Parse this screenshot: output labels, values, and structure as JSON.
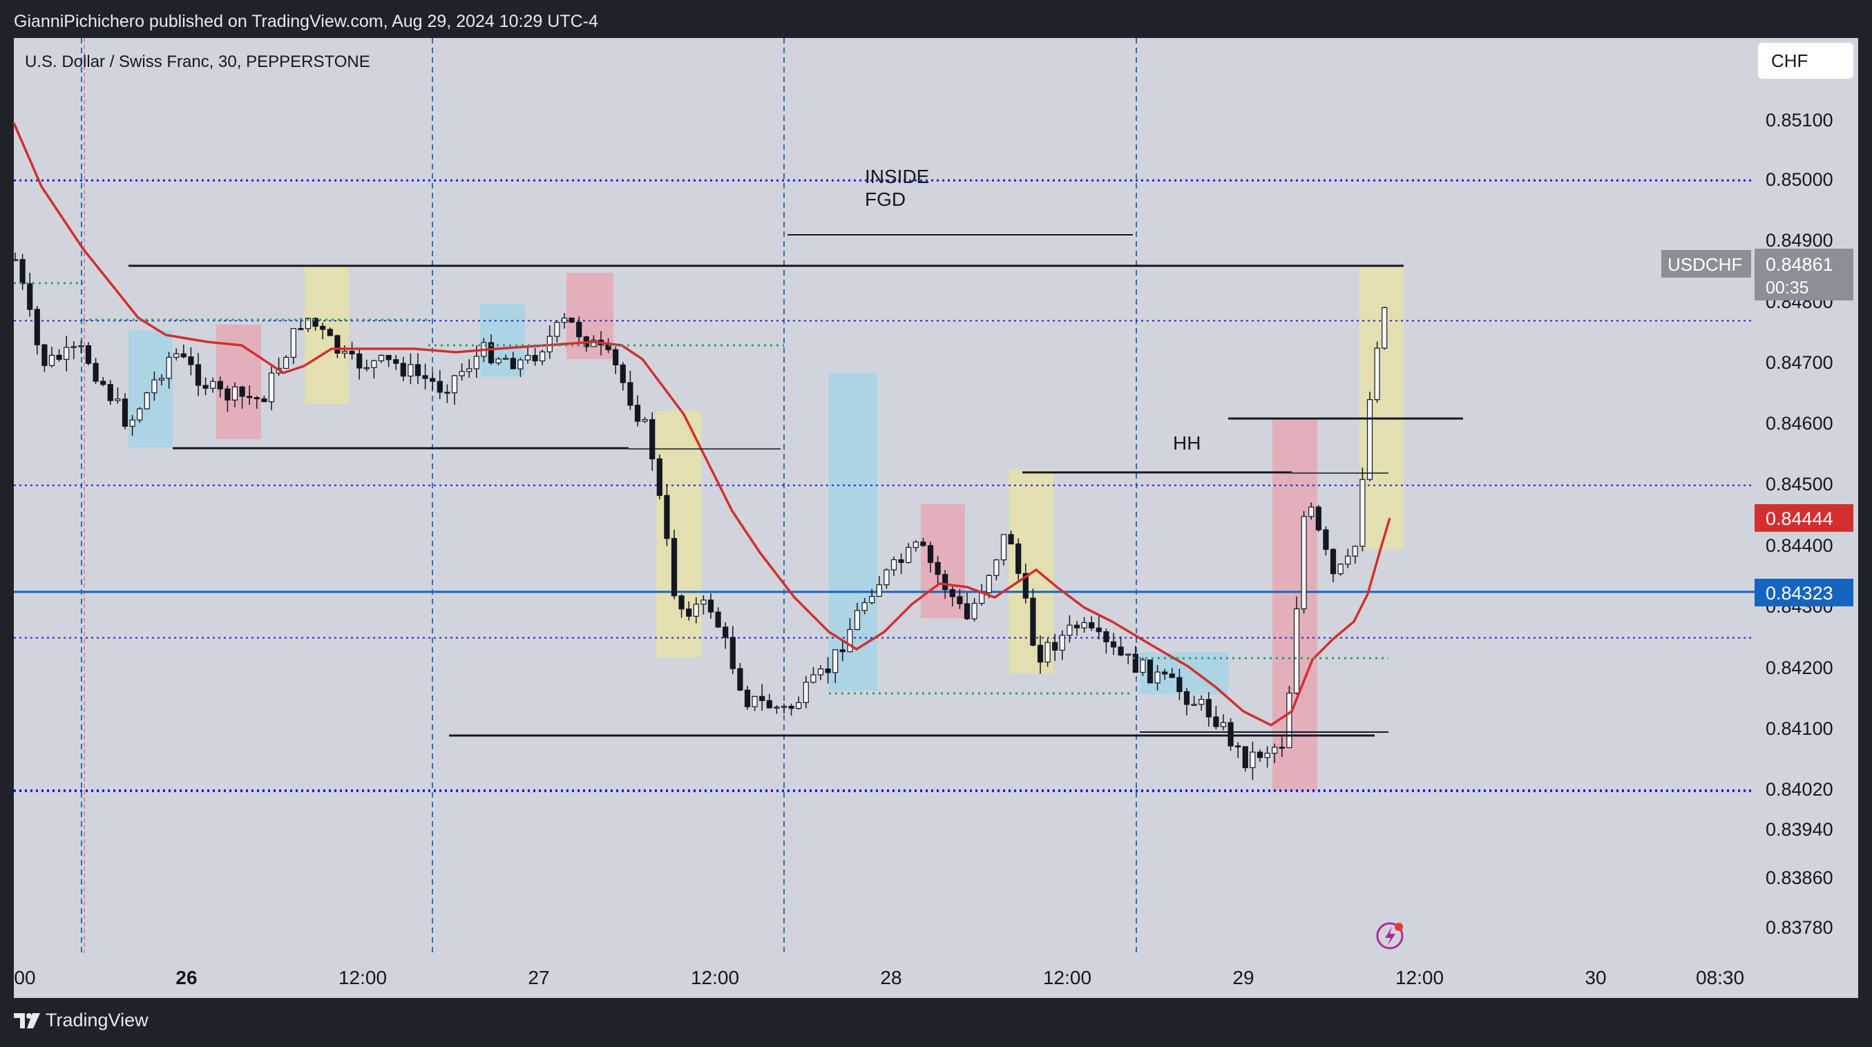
{
  "header": {
    "publisher_line": "GianniPichichero published on TradingView.com, Aug 29, 2024 10:29 UTC-4"
  },
  "footer": {
    "brand": "TradingView",
    "brand_icon": "tradingview-logo-icon"
  },
  "chart_data": {
    "type": "candlestick",
    "symbol_title": "U.S. Dollar / Swiss Franc, 30, PEPPERSTONE",
    "currency_button": "CHF",
    "ticker": "USDCHF",
    "last_price": "0.84861",
    "countdown": "00:35",
    "ma_price": "0.84444",
    "hline_price": "0.84323",
    "y_ticks": [
      "0.85100",
      "0.85000",
      "0.84900",
      "0.84800",
      "0.84700",
      "0.84600",
      "0.84500",
      "0.84400",
      "0.84300",
      "0.84200",
      "0.84100",
      "0.84020",
      "0.83940",
      "0.83860",
      "0.83780"
    ],
    "x_ticks": [
      "00",
      "26",
      "12:00",
      "27",
      "12:00",
      "28",
      "12:00",
      "29",
      "12:00",
      "30",
      "08:30"
    ],
    "annotations": {
      "inside_line1": "INSIDE",
      "inside_line2": "FGD",
      "hh": "HH"
    },
    "colors": {
      "background": "#d1d4dc",
      "moving_average": "#d32f2f",
      "horizontal_line": "#1565c0",
      "dotted_levels": "#1a22d6",
      "session_lines": "#2f6fb3",
      "zone_blue": "#a6d4e6",
      "zone_red": "#e6a8b4",
      "zone_yellow": "#e6e0a8"
    }
  }
}
